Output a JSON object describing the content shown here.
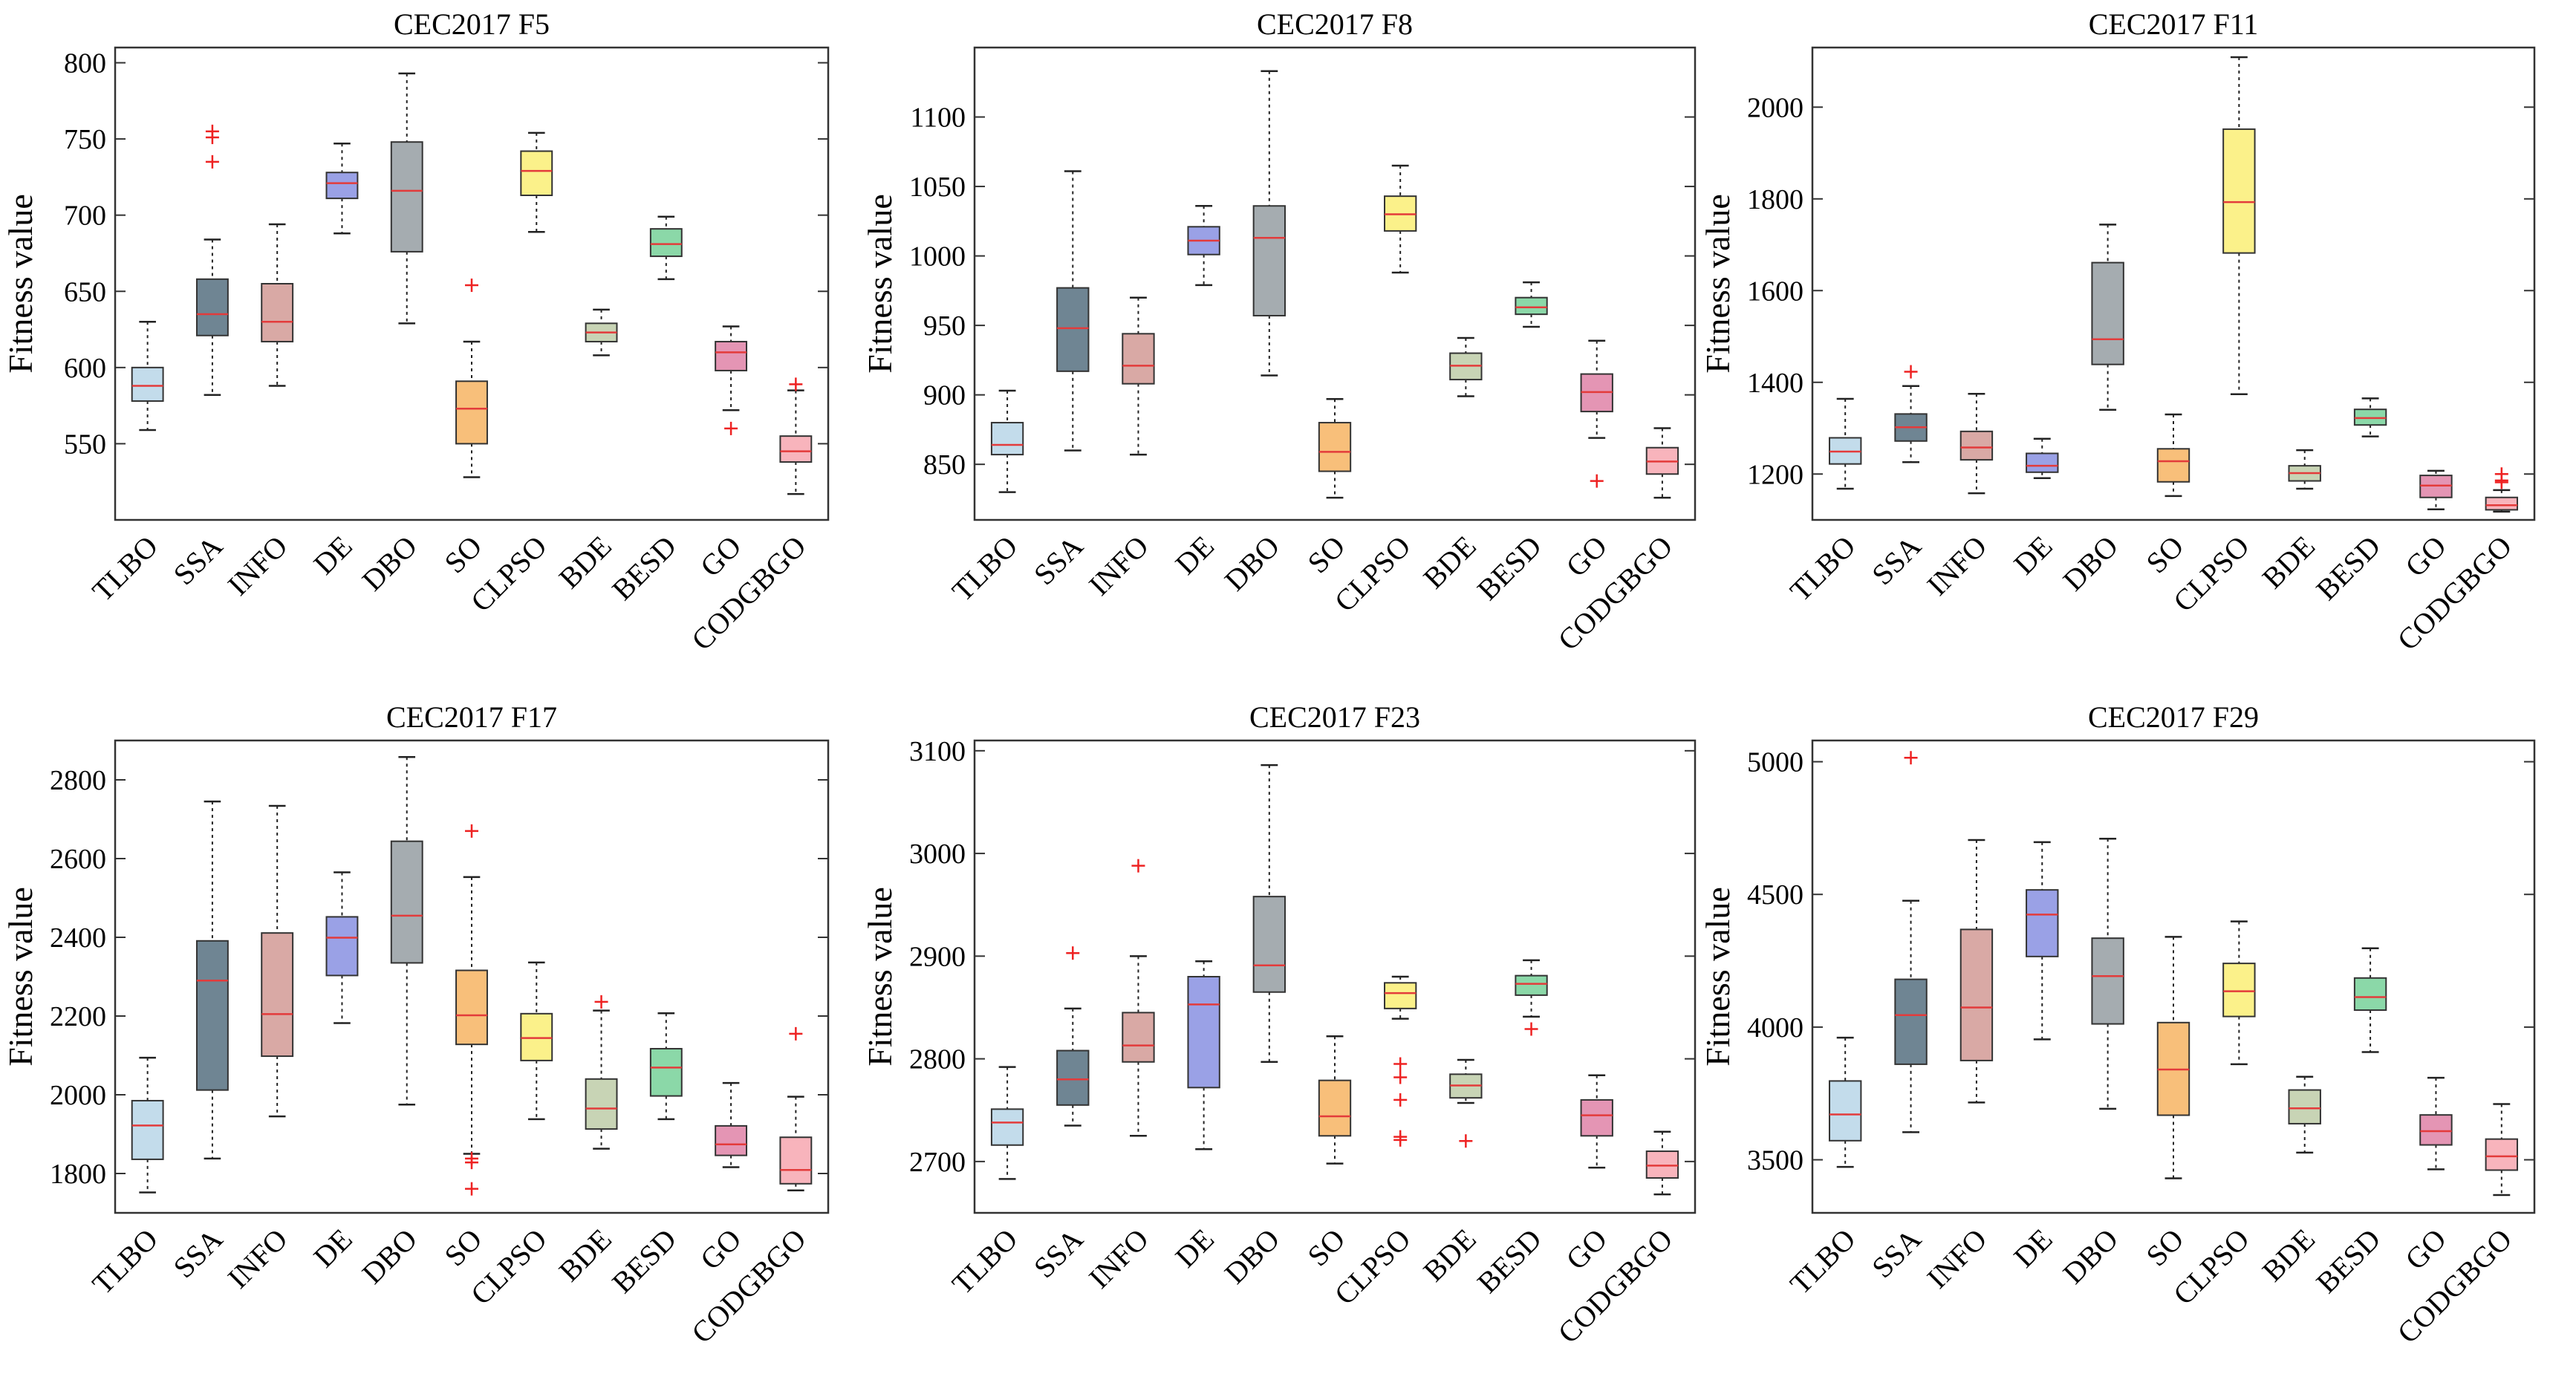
{
  "chart_data": [
    {
      "type": "boxplot",
      "title": "CEC2017 F5",
      "ylabel": "Fitness value",
      "ylim": [
        500,
        810
      ],
      "yticks": [
        550,
        600,
        650,
        700,
        750,
        800
      ],
      "categories": [
        "TLBO",
        "SSA",
        "INFO",
        "DE",
        "DBO",
        "SO",
        "CLPSO",
        "BDE",
        "BESD",
        "GO",
        "CODGBGO"
      ],
      "series": [
        {
          "name": "TLBO",
          "min": 559,
          "q1": 578,
          "median": 588,
          "q3": 600,
          "max": 630,
          "outliers": []
        },
        {
          "name": "SSA",
          "min": 582,
          "q1": 621,
          "median": 635,
          "q3": 658,
          "max": 684,
          "outliers": [
            735,
            751,
            755
          ]
        },
        {
          "name": "INFO",
          "min": 588,
          "q1": 617,
          "median": 630,
          "q3": 655,
          "max": 694,
          "outliers": []
        },
        {
          "name": "DE",
          "min": 688,
          "q1": 711,
          "median": 721,
          "q3": 728,
          "max": 747,
          "outliers": []
        },
        {
          "name": "DBO",
          "min": 629,
          "q1": 676,
          "median": 716,
          "q3": 748,
          "max": 793,
          "outliers": []
        },
        {
          "name": "SO",
          "min": 528,
          "q1": 550,
          "median": 573,
          "q3": 591,
          "max": 617,
          "outliers": [
            654
          ]
        },
        {
          "name": "CLPSO",
          "min": 689,
          "q1": 713,
          "median": 729,
          "q3": 742,
          "max": 754,
          "outliers": []
        },
        {
          "name": "BDE",
          "min": 608,
          "q1": 617,
          "median": 623,
          "q3": 629,
          "max": 638,
          "outliers": []
        },
        {
          "name": "BESD",
          "min": 658,
          "q1": 673,
          "median": 681,
          "q3": 691,
          "max": 699,
          "outliers": []
        },
        {
          "name": "GO",
          "min": 572,
          "q1": 598,
          "median": 610,
          "q3": 617,
          "max": 627,
          "outliers": [
            560
          ]
        },
        {
          "name": "CODGBGO",
          "min": 517,
          "q1": 538,
          "median": 545,
          "q3": 555,
          "max": 585,
          "outliers": [
            589
          ]
        }
      ]
    },
    {
      "type": "boxplot",
      "title": "CEC2017 F8",
      "ylabel": "Fitness value",
      "ylim": [
        810,
        1150
      ],
      "yticks": [
        850,
        900,
        950,
        1000,
        1050,
        1100
      ],
      "categories": [
        "TLBO",
        "SSA",
        "INFO",
        "DE",
        "DBO",
        "SO",
        "CLPSO",
        "BDE",
        "BESD",
        "GO",
        "CODGBGO"
      ],
      "series": [
        {
          "name": "TLBO",
          "min": 830,
          "q1": 857,
          "median": 864,
          "q3": 880,
          "max": 903,
          "outliers": []
        },
        {
          "name": "SSA",
          "min": 860,
          "q1": 917,
          "median": 948,
          "q3": 977,
          "max": 1061,
          "outliers": []
        },
        {
          "name": "INFO",
          "min": 857,
          "q1": 908,
          "median": 921,
          "q3": 944,
          "max": 970,
          "outliers": []
        },
        {
          "name": "DE",
          "min": 979,
          "q1": 1001,
          "median": 1011,
          "q3": 1021,
          "max": 1036,
          "outliers": []
        },
        {
          "name": "DBO",
          "min": 914,
          "q1": 957,
          "median": 1013,
          "q3": 1036,
          "max": 1133,
          "outliers": []
        },
        {
          "name": "SO",
          "min": 826,
          "q1": 845,
          "median": 859,
          "q3": 880,
          "max": 897,
          "outliers": []
        },
        {
          "name": "CLPSO",
          "min": 988,
          "q1": 1018,
          "median": 1030,
          "q3": 1043,
          "max": 1065,
          "outliers": []
        },
        {
          "name": "BDE",
          "min": 899,
          "q1": 911,
          "median": 921,
          "q3": 930,
          "max": 941,
          "outliers": []
        },
        {
          "name": "BESD",
          "min": 949,
          "q1": 958,
          "median": 963,
          "q3": 970,
          "max": 981,
          "outliers": []
        },
        {
          "name": "GO",
          "min": 869,
          "q1": 888,
          "median": 902,
          "q3": 915,
          "max": 939,
          "outliers": [
            838
          ]
        },
        {
          "name": "CODGBGO",
          "min": 826,
          "q1": 843,
          "median": 852,
          "q3": 862,
          "max": 876,
          "outliers": []
        }
      ]
    },
    {
      "type": "boxplot",
      "title": "CEC2017 F11",
      "ylabel": "Fitness value",
      "ylim": [
        1100,
        2130
      ],
      "yticks": [
        1200,
        1400,
        1600,
        1800,
        2000
      ],
      "categories": [
        "TLBO",
        "SSA",
        "INFO",
        "DE",
        "DBO",
        "SO",
        "CLPSO",
        "BDE",
        "BESD",
        "GO",
        "CODGBGO"
      ],
      "series": [
        {
          "name": "TLBO",
          "min": 1168,
          "q1": 1222,
          "median": 1249,
          "q3": 1279,
          "max": 1364,
          "outliers": []
        },
        {
          "name": "SSA",
          "min": 1226,
          "q1": 1272,
          "median": 1302,
          "q3": 1331,
          "max": 1392,
          "outliers": [
            1423
          ]
        },
        {
          "name": "INFO",
          "min": 1158,
          "q1": 1231,
          "median": 1258,
          "q3": 1293,
          "max": 1375,
          "outliers": []
        },
        {
          "name": "DE",
          "min": 1191,
          "q1": 1204,
          "median": 1218,
          "q3": 1245,
          "max": 1277,
          "outliers": []
        },
        {
          "name": "DBO",
          "min": 1340,
          "q1": 1439,
          "median": 1494,
          "q3": 1661,
          "max": 1744,
          "outliers": []
        },
        {
          "name": "SO",
          "min": 1152,
          "q1": 1183,
          "median": 1228,
          "q3": 1255,
          "max": 1330,
          "outliers": []
        },
        {
          "name": "CLPSO",
          "min": 1374,
          "q1": 1682,
          "median": 1793,
          "q3": 1952,
          "max": 2109,
          "outliers": []
        },
        {
          "name": "BDE",
          "min": 1168,
          "q1": 1185,
          "median": 1202,
          "q3": 1218,
          "max": 1252,
          "outliers": []
        },
        {
          "name": "BESD",
          "min": 1282,
          "q1": 1307,
          "median": 1322,
          "q3": 1341,
          "max": 1365,
          "outliers": []
        },
        {
          "name": "GO",
          "min": 1123,
          "q1": 1149,
          "median": 1175,
          "q3": 1197,
          "max": 1207,
          "outliers": []
        },
        {
          "name": "CODGBGO",
          "min": 1118,
          "q1": 1122,
          "median": 1132,
          "q3": 1149,
          "max": 1165,
          "outliers": [
            1182,
            1186,
            1200
          ]
        }
      ]
    },
    {
      "type": "boxplot",
      "title": "CEC2017 F17",
      "ylabel": "Fitness value",
      "ylim": [
        1700,
        2900
      ],
      "yticks": [
        1800,
        2000,
        2200,
        2400,
        2600,
        2800
      ],
      "categories": [
        "TLBO",
        "SSA",
        "INFO",
        "DE",
        "DBO",
        "SO",
        "CLPSO",
        "BDE",
        "BESD",
        "GO",
        "CODGBGO"
      ],
      "series": [
        {
          "name": "TLBO",
          "min": 1752,
          "q1": 1836,
          "median": 1922,
          "q3": 1985,
          "max": 2094,
          "outliers": []
        },
        {
          "name": "SSA",
          "min": 1838,
          "q1": 2012,
          "median": 2290,
          "q3": 2391,
          "max": 2745,
          "outliers": []
        },
        {
          "name": "INFO",
          "min": 1945,
          "q1": 2098,
          "median": 2205,
          "q3": 2411,
          "max": 2734,
          "outliers": []
        },
        {
          "name": "DE",
          "min": 2182,
          "q1": 2303,
          "median": 2399,
          "q3": 2452,
          "max": 2565,
          "outliers": []
        },
        {
          "name": "DBO",
          "min": 1975,
          "q1": 2335,
          "median": 2455,
          "q3": 2644,
          "max": 2858,
          "outliers": []
        },
        {
          "name": "SO",
          "min": 1850,
          "q1": 2128,
          "median": 2202,
          "q3": 2316,
          "max": 2553,
          "outliers": [
            2670,
            1838,
            1828,
            1761
          ]
        },
        {
          "name": "CLPSO",
          "min": 1938,
          "q1": 2087,
          "median": 2144,
          "q3": 2206,
          "max": 2336,
          "outliers": []
        },
        {
          "name": "BDE",
          "min": 1863,
          "q1": 1913,
          "median": 1965,
          "q3": 2040,
          "max": 2214,
          "outliers": [
            2236
          ]
        },
        {
          "name": "BESD",
          "min": 1938,
          "q1": 1997,
          "median": 2069,
          "q3": 2117,
          "max": 2207,
          "outliers": []
        },
        {
          "name": "GO",
          "min": 1816,
          "q1": 1846,
          "median": 1874,
          "q3": 1921,
          "max": 2030,
          "outliers": []
        },
        {
          "name": "CODGBGO",
          "min": 1757,
          "q1": 1774,
          "median": 1809,
          "q3": 1892,
          "max": 1995,
          "outliers": [
            2155
          ]
        }
      ]
    },
    {
      "type": "boxplot",
      "title": "CEC2017 F23",
      "ylabel": "Fitness value",
      "ylim": [
        2650,
        3110
      ],
      "yticks": [
        2700,
        2800,
        2900,
        3000,
        3100
      ],
      "categories": [
        "TLBO",
        "SSA",
        "INFO",
        "DE",
        "DBO",
        "SO",
        "CLPSO",
        "BDE",
        "BESD",
        "GO",
        "CODGBGO"
      ],
      "series": [
        {
          "name": "TLBO",
          "min": 2683,
          "q1": 2716,
          "median": 2738,
          "q3": 2751,
          "max": 2792,
          "outliers": []
        },
        {
          "name": "SSA",
          "min": 2735,
          "q1": 2755,
          "median": 2780,
          "q3": 2808,
          "max": 2849,
          "outliers": [
            2903
          ]
        },
        {
          "name": "INFO",
          "min": 2725,
          "q1": 2797,
          "median": 2813,
          "q3": 2845,
          "max": 2900,
          "outliers": [
            2988
          ]
        },
        {
          "name": "DE",
          "min": 2712,
          "q1": 2772,
          "median": 2853,
          "q3": 2880,
          "max": 2895,
          "outliers": []
        },
        {
          "name": "DBO",
          "min": 2797,
          "q1": 2865,
          "median": 2891,
          "q3": 2958,
          "max": 3086,
          "outliers": []
        },
        {
          "name": "SO",
          "min": 2698,
          "q1": 2725,
          "median": 2744,
          "q3": 2779,
          "max": 2822,
          "outliers": []
        },
        {
          "name": "CLPSO",
          "min": 2839,
          "q1": 2849,
          "median": 2864,
          "q3": 2874,
          "max": 2880,
          "outliers": [
            2795,
            2782,
            2760,
            2724,
            2721
          ]
        },
        {
          "name": "BDE",
          "min": 2757,
          "q1": 2762,
          "median": 2774,
          "q3": 2785,
          "max": 2799,
          "outliers": [
            2720
          ]
        },
        {
          "name": "BESD",
          "min": 2841,
          "q1": 2862,
          "median": 2873,
          "q3": 2881,
          "max": 2896,
          "outliers": [
            2829
          ]
        },
        {
          "name": "GO",
          "min": 2694,
          "q1": 2725,
          "median": 2745,
          "q3": 2760,
          "max": 2784,
          "outliers": []
        },
        {
          "name": "CODGBGO",
          "min": 2668,
          "q1": 2684,
          "median": 2696,
          "q3": 2710,
          "max": 2729,
          "outliers": []
        }
      ]
    },
    {
      "type": "boxplot",
      "title": "CEC2017 F29",
      "ylabel": "Fitness value",
      "ylim": [
        3300,
        5080
      ],
      "yticks": [
        3500,
        4000,
        4500,
        5000
      ],
      "categories": [
        "TLBO",
        "SSA",
        "INFO",
        "DE",
        "DBO",
        "SO",
        "CLPSO",
        "BDE",
        "BESD",
        "GO",
        "CODGBGO"
      ],
      "series": [
        {
          "name": "TLBO",
          "min": 3473,
          "q1": 3572,
          "median": 3671,
          "q3": 3797,
          "max": 3960,
          "outliers": []
        },
        {
          "name": "SSA",
          "min": 3604,
          "q1": 3860,
          "median": 4045,
          "q3": 4180,
          "max": 4476,
          "outliers": [
            5015
          ]
        },
        {
          "name": "INFO",
          "min": 3716,
          "q1": 3874,
          "median": 4074,
          "q3": 4368,
          "max": 4705,
          "outliers": []
        },
        {
          "name": "DE",
          "min": 3954,
          "q1": 4266,
          "median": 4424,
          "q3": 4517,
          "max": 4697,
          "outliers": []
        },
        {
          "name": "DBO",
          "min": 3692,
          "q1": 4012,
          "median": 4192,
          "q3": 4335,
          "max": 4710,
          "outliers": []
        },
        {
          "name": "SO",
          "min": 3430,
          "q1": 3668,
          "median": 3840,
          "q3": 4017,
          "max": 4340,
          "outliers": []
        },
        {
          "name": "CLPSO",
          "min": 3860,
          "q1": 4040,
          "median": 4135,
          "q3": 4240,
          "max": 4398,
          "outliers": []
        },
        {
          "name": "BDE",
          "min": 3527,
          "q1": 3636,
          "median": 3694,
          "q3": 3763,
          "max": 3813,
          "outliers": []
        },
        {
          "name": "BESD",
          "min": 3906,
          "q1": 4064,
          "median": 4113,
          "q3": 4185,
          "max": 4297,
          "outliers": []
        },
        {
          "name": "GO",
          "min": 3464,
          "q1": 3556,
          "median": 3608,
          "q3": 3669,
          "max": 3809,
          "outliers": []
        },
        {
          "name": "CODGBGO",
          "min": 3367,
          "q1": 3461,
          "median": 3513,
          "q3": 3578,
          "max": 3710,
          "outliers": []
        }
      ]
    }
  ],
  "colors": {
    "boxes": [
      "#c3dceb",
      "#6f8593",
      "#d9a9a5",
      "#9aa1e6",
      "#a5acb0",
      "#f8bf7a",
      "#fbf18a",
      "#c8d4b5",
      "#8bd8a8",
      "#e495b4",
      "#f8b4bc"
    ],
    "median": "#e33b3b",
    "outlier": "#ee2222"
  }
}
